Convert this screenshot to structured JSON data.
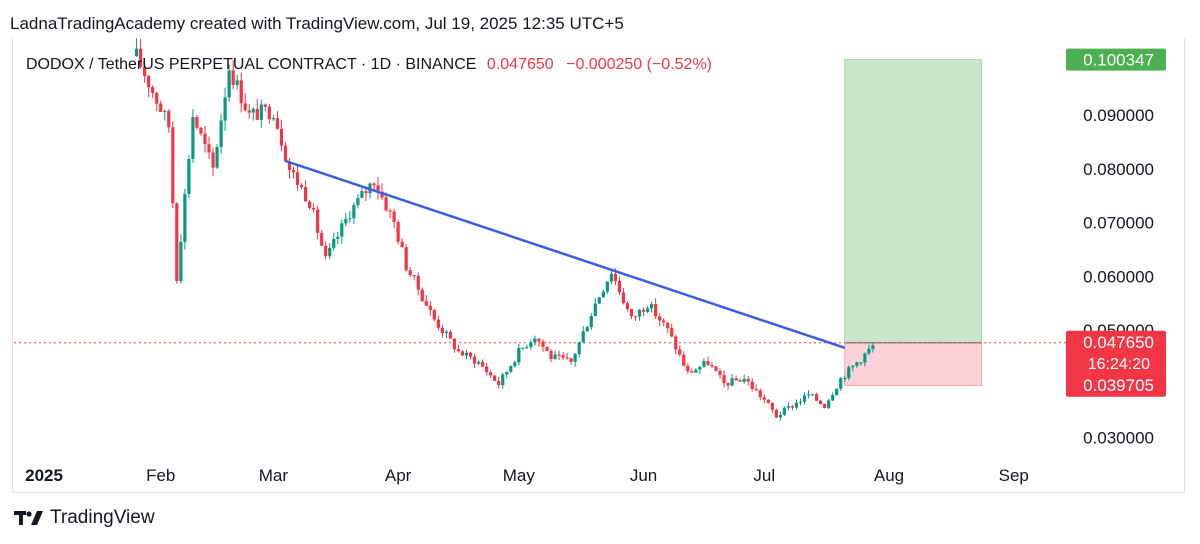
{
  "header": {
    "attribution": "LadnaTradingAcademy created with TradingView.com, Jul 19, 2025 12:35 UTC+5"
  },
  "symbol": {
    "title": "DODOX / TetherUS PERPETUAL CONTRACT · 1D · BINANCE",
    "last_price": "0.047650",
    "change": "−0.000250 (−0.52%)"
  },
  "footer": {
    "brand": "TradingView",
    "logo_icon": "tradingview-logo-icon"
  },
  "colors": {
    "up": "#089981",
    "down": "#f23645",
    "trendline": "#3c5ee6",
    "profit_zone": "#c8e6c9",
    "loss_zone": "#fcd3d8",
    "target_badge": "#4caf50"
  },
  "chart_data": {
    "type": "candlestick",
    "x_axis": {
      "ticks": [
        "2025",
        "Feb",
        "Mar",
        "Apr",
        "May",
        "Jun",
        "Jul",
        "Aug",
        "Sep"
      ],
      "range": [
        "2025-01-01",
        "2025-09-12"
      ]
    },
    "y_axis": {
      "ticks": [
        "0.030000",
        "0.050000",
        "0.060000",
        "0.070000",
        "0.080000",
        "0.090000"
      ],
      "range": [
        0.0262,
        0.104
      ],
      "position": "right"
    },
    "price_labels": {
      "target": "0.100347",
      "current": "0.047650",
      "countdown": "16:24:20",
      "stop": "0.039705"
    },
    "position_tool": {
      "entry": 0.04765,
      "target": 0.100347,
      "stop": 0.039705,
      "start": "2025-07-21",
      "end": "2025-08-24"
    },
    "trendline": {
      "start": [
        "2025-03-04",
        0.0815
      ],
      "end": [
        "2025-07-21",
        0.0467
      ]
    },
    "current_price_line": 0.04765,
    "series": [
      {
        "date": "2025-01-26",
        "price": 0.101
      },
      {
        "date": "2025-02-03",
        "price": 0.088
      },
      {
        "date": "2025-02-05",
        "price": 0.06
      },
      {
        "date": "2025-02-09",
        "price": 0.09
      },
      {
        "date": "2025-02-14",
        "price": 0.08
      },
      {
        "date": "2025-02-18",
        "price": 0.099
      },
      {
        "date": "2025-02-23",
        "price": 0.09
      },
      {
        "date": "2025-03-01",
        "price": 0.091
      },
      {
        "date": "2025-03-05",
        "price": 0.08
      },
      {
        "date": "2025-03-10",
        "price": 0.074
      },
      {
        "date": "2025-03-14",
        "price": 0.063
      },
      {
        "date": "2025-03-20",
        "price": 0.072
      },
      {
        "date": "2025-03-26",
        "price": 0.078
      },
      {
        "date": "2025-03-31",
        "price": 0.07
      },
      {
        "date": "2025-04-03",
        "price": 0.062
      },
      {
        "date": "2025-04-10",
        "price": 0.052
      },
      {
        "date": "2025-04-16",
        "price": 0.046
      },
      {
        "date": "2025-04-21",
        "price": 0.044
      },
      {
        "date": "2025-04-26",
        "price": 0.04
      },
      {
        "date": "2025-05-01",
        "price": 0.046
      },
      {
        "date": "2025-05-05",
        "price": 0.049
      },
      {
        "date": "2025-05-09",
        "price": 0.045
      },
      {
        "date": "2025-05-14",
        "price": 0.044
      },
      {
        "date": "2025-05-20",
        "price": 0.055
      },
      {
        "date": "2025-05-24",
        "price": 0.061
      },
      {
        "date": "2025-05-29",
        "price": 0.052
      },
      {
        "date": "2025-06-02",
        "price": 0.055
      },
      {
        "date": "2025-06-07",
        "price": 0.05
      },
      {
        "date": "2025-06-12",
        "price": 0.042
      },
      {
        "date": "2025-06-17",
        "price": 0.044
      },
      {
        "date": "2025-06-21",
        "price": 0.04
      },
      {
        "date": "2025-06-26",
        "price": 0.041
      },
      {
        "date": "2025-07-01",
        "price": 0.037
      },
      {
        "date": "2025-07-04",
        "price": 0.034
      },
      {
        "date": "2025-07-08",
        "price": 0.036
      },
      {
        "date": "2025-07-12",
        "price": 0.038
      },
      {
        "date": "2025-07-16",
        "price": 0.036
      },
      {
        "date": "2025-07-20",
        "price": 0.041
      },
      {
        "date": "2025-07-24",
        "price": 0.044
      },
      {
        "date": "2025-07-28",
        "price": 0.047
      }
    ]
  }
}
